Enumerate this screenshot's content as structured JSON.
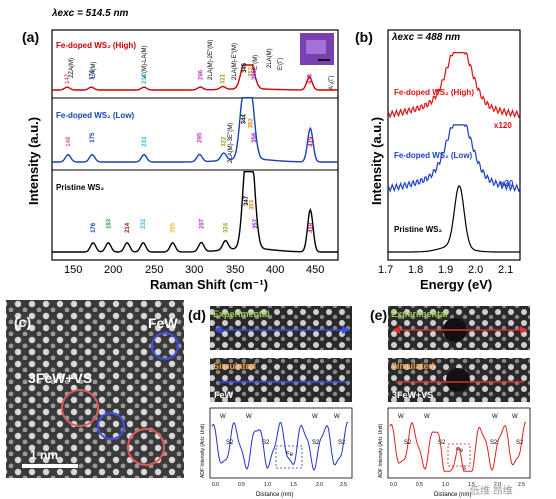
{
  "panel_a": {
    "label": "(a)",
    "excitation": "λexc = 514.5 nm",
    "x_axis_title": "Raman Shift (cm⁻¹)",
    "y_axis_title": "Intensity (a.u.)",
    "x_ticks": [
      "150",
      "200",
      "250",
      "300",
      "350",
      "400",
      "450"
    ],
    "spectra": [
      {
        "name": "Fe-doped WS₂ (High)",
        "color": "#cc0000",
        "peaks": [
          {
            "v": "147",
            "c": "#e06080"
          },
          {
            "v": "174",
            "c": "#1a3fb0"
          },
          {
            "v": "233",
            "c": "#33bbdd"
          },
          {
            "v": "296",
            "c": "#c040c0"
          },
          {
            "v": "321",
            "c": "#88aa22"
          },
          {
            "v": "345",
            "c": "#111111"
          },
          {
            "v": "352",
            "c": "#e08a10"
          },
          {
            "v": "356",
            "c": "#8a2be2"
          },
          {
            "v": "418",
            "c": "#c0207a"
          }
        ]
      },
      {
        "name": "Fe-doped WS₂ (Low)",
        "color": "#1a3fb0",
        "peaks": [
          {
            "v": "148",
            "c": "#e06080"
          },
          {
            "v": "175",
            "c": "#1a3fb0"
          },
          {
            "v": "233",
            "c": "#33bbdd"
          },
          {
            "v": "295",
            "c": "#c040c0"
          },
          {
            "v": "322",
            "c": "#88aa22"
          },
          {
            "v": "344",
            "c": "#111111"
          },
          {
            "v": "352",
            "c": "#e08a10"
          },
          {
            "v": "356",
            "c": "#8a2be2"
          },
          {
            "v": "419",
            "c": "#c0207a"
          }
        ]
      },
      {
        "name": "Pristine WS₂",
        "color": "#000000",
        "peaks": [
          {
            "v": "176",
            "c": "#1a3fb0"
          },
          {
            "v": "193",
            "c": "#22aa44"
          },
          {
            "v": "214",
            "c": "#8a1a1a"
          },
          {
            "v": "232",
            "c": "#33bbdd"
          },
          {
            "v": "265",
            "c": "#e0c020"
          },
          {
            "v": "297",
            "c": "#c040c0"
          },
          {
            "v": "324",
            "c": "#88aa22"
          },
          {
            "v": "347",
            "c": "#111111"
          },
          {
            "v": "353",
            "c": "#e08a10"
          },
          {
            "v": "357",
            "c": "#8a2be2"
          },
          {
            "v": "419",
            "c": "#c0207a"
          }
        ]
      }
    ],
    "mode_labels": [
      "2LA(M)-E²(M)",
      "2ZA(M)",
      "LA(M)",
      "A'(M)-LA(M)",
      "2LA(M)-2E''(M)",
      "2LA(M)-E''(M)",
      "E''(M)",
      "2LA(M)",
      "E'(Γ)",
      "A'₁(Γ)",
      "2LA(M)-3E''(M)"
    ]
  },
  "panel_b": {
    "label": "(b)",
    "excitation": "λexc = 488 nm",
    "x_axis_title": "Energy (eV)",
    "y_axis_title": "Intensity (a.u.)",
    "x_ticks": [
      "1.7",
      "1.8",
      "1.9",
      "2.0",
      "2.1"
    ],
    "spectra": [
      {
        "name": "Fe-doped WS₂ (High)",
        "factor": "x120",
        "color": "#dd1111"
      },
      {
        "name": "Fe-doped WS₂ (Low)",
        "factor": "x20",
        "color": "#1a3fc0"
      },
      {
        "name": "Pristine WS₂",
        "factor": "",
        "color": "#000000"
      }
    ]
  },
  "panel_c": {
    "label": "(c)",
    "fe_label": "FeW",
    "cluster_label": "3FeW+VS",
    "scale_bar": "1 nm"
  },
  "panel_d": {
    "label": "(d)",
    "experimental": "Experimental",
    "simulated": "Simulated",
    "sim_caption": "FeW",
    "profile_ylabel": "ADF Intensity (Arb. Unit)",
    "profile_xlabel": "Distance (nm)",
    "profile_ticks": [
      "0.0",
      "0.5",
      "1.0",
      "1.5",
      "2.0",
      "2.5"
    ],
    "site_labels": [
      "W",
      "W",
      "S2",
      "S2",
      "Fe",
      "W",
      "W",
      "S2",
      "S2"
    ]
  },
  "panel_e": {
    "label": "(e)",
    "experimental": "Experimental",
    "simulated": "Simulated",
    "sim_caption": "3FeW+VS",
    "profile_ylabel": "ADF Intensity (Arb. Unit)",
    "profile_xlabel": "Distance (nm)",
    "profile_ticks": [
      "0.0",
      "0.5",
      "1.0",
      "1.5",
      "2.0",
      "2.5"
    ],
    "site_labels": [
      "W",
      "W",
      "S2",
      "S2",
      "Fe",
      "S",
      "W",
      "W",
      "S2",
      "S2"
    ]
  },
  "watermark": "低维 昂维"
}
